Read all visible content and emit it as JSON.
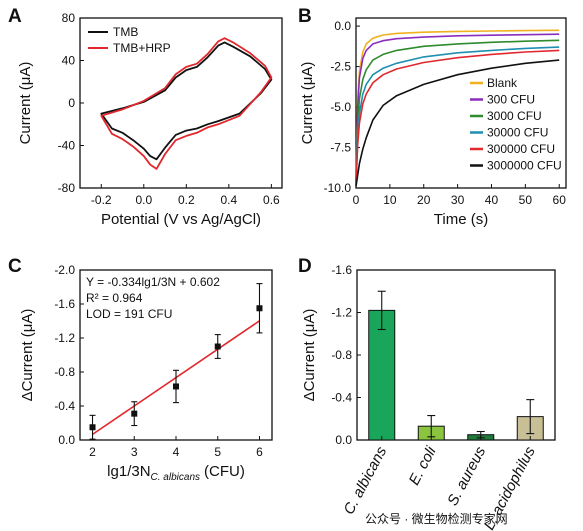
{
  "watermark": "公众号 · 微生物检测专家网",
  "chart_data": [
    {
      "panel": "A",
      "type": "line",
      "xlabel": "Potential (V vs Ag/AgCl)",
      "ylabel": "Current (μA)",
      "xlim": [
        -0.3,
        0.65
      ],
      "ylim": [
        -80,
        80
      ],
      "xticks": [
        -0.2,
        0.0,
        0.2,
        0.4,
        0.6
      ],
      "xtick_labels": [
        "-0.2",
        "0.0",
        "0.2",
        "0.4",
        "0.6"
      ],
      "yticks": [
        -80,
        -40,
        0,
        40,
        80
      ],
      "ytick_labels": [
        "-80",
        "-40",
        "0",
        "40",
        "80"
      ],
      "legend_position": "top-left",
      "series": [
        {
          "name": "TMB",
          "color": "#111111",
          "x": [
            -0.2,
            -0.1,
            0.0,
            0.1,
            0.15,
            0.2,
            0.25,
            0.3,
            0.35,
            0.38,
            0.42,
            0.5,
            0.57,
            0.6,
            0.55,
            0.45,
            0.35,
            0.3,
            0.25,
            0.2,
            0.15,
            0.1,
            0.06,
            0.03,
            0.0,
            -0.05,
            -0.1,
            -0.15,
            -0.2
          ],
          "y": [
            -10,
            -5,
            1,
            12,
            24,
            31,
            34,
            43,
            54,
            57,
            53,
            44,
            32,
            22,
            9,
            -10,
            -17,
            -20,
            -24,
            -26,
            -30,
            -42,
            -53,
            -50,
            -43,
            -35,
            -28,
            -24,
            -10
          ]
        },
        {
          "name": "TMB+HRP",
          "color": "#e0282e",
          "x": [
            -0.2,
            -0.1,
            0.0,
            0.1,
            0.15,
            0.2,
            0.25,
            0.3,
            0.35,
            0.38,
            0.42,
            0.5,
            0.57,
            0.6,
            0.55,
            0.45,
            0.35,
            0.3,
            0.25,
            0.2,
            0.15,
            0.1,
            0.06,
            0.03,
            0.0,
            -0.05,
            -0.1,
            -0.15,
            -0.2
          ],
          "y": [
            -12,
            -6,
            2,
            14,
            27,
            34,
            37,
            46,
            58,
            61,
            57,
            47,
            35,
            24,
            10,
            -12,
            -20,
            -23,
            -28,
            -31,
            -35,
            -48,
            -62,
            -58,
            -50,
            -41,
            -34,
            -29,
            -12
          ]
        }
      ]
    },
    {
      "panel": "B",
      "type": "line",
      "xlabel": "Time (s)",
      "ylabel": "Current (μA)",
      "xlim": [
        0,
        62
      ],
      "ylim": [
        -10,
        0.5
      ],
      "xticks": [
        0,
        10,
        20,
        30,
        40,
        50,
        60
      ],
      "xtick_labels": [
        "0",
        "10",
        "20",
        "30",
        "40",
        "50",
        "60"
      ],
      "yticks": [
        -10,
        -7.5,
        -5,
        -2.5,
        0
      ],
      "ytick_labels": [
        "-10.0",
        "-7.5",
        "-5.0",
        "-2.5",
        "0.0"
      ],
      "legend_position": "bottom-right",
      "series": [
        {
          "name": "Blank",
          "color": "#f0b020",
          "x": [
            0,
            0.5,
            1,
            2,
            3,
            5,
            8,
            12,
            20,
            30,
            40,
            50,
            60
          ],
          "y": [
            -9.6,
            -4.5,
            -2.8,
            -1.6,
            -1.1,
            -0.75,
            -0.55,
            -0.45,
            -0.38,
            -0.33,
            -0.3,
            -0.28,
            -0.26
          ]
        },
        {
          "name": "300 CFU",
          "color": "#8a2dbe",
          "x": [
            0,
            0.5,
            1,
            2,
            3,
            5,
            8,
            12,
            20,
            30,
            40,
            50,
            60
          ],
          "y": [
            -9.6,
            -5.0,
            -3.2,
            -2.0,
            -1.5,
            -1.1,
            -0.9,
            -0.78,
            -0.68,
            -0.6,
            -0.56,
            -0.53,
            -0.5
          ]
        },
        {
          "name": "3000 CFU",
          "color": "#2e8b2e",
          "x": [
            0,
            0.5,
            1,
            2,
            3,
            5,
            8,
            12,
            20,
            30,
            40,
            50,
            60
          ],
          "y": [
            -9.7,
            -6.0,
            -4.5,
            -3.3,
            -2.7,
            -2.1,
            -1.75,
            -1.5,
            -1.25,
            -1.1,
            -1.0,
            -0.93,
            -0.88
          ]
        },
        {
          "name": "30000 CFU",
          "color": "#1f8fb0",
          "x": [
            0,
            0.5,
            1,
            2,
            3,
            5,
            8,
            12,
            20,
            30,
            40,
            50,
            60
          ],
          "y": [
            -9.7,
            -6.8,
            -5.4,
            -4.2,
            -3.6,
            -3.0,
            -2.6,
            -2.3,
            -1.9,
            -1.65,
            -1.5,
            -1.38,
            -1.3
          ]
        },
        {
          "name": "300000 CFU",
          "color": "#e0282e",
          "x": [
            0,
            0.5,
            1,
            2,
            3,
            5,
            8,
            12,
            20,
            30,
            40,
            50,
            60
          ],
          "y": [
            -9.8,
            -7.3,
            -6.0,
            -4.8,
            -4.2,
            -3.5,
            -3.0,
            -2.65,
            -2.25,
            -1.95,
            -1.75,
            -1.6,
            -1.5
          ]
        },
        {
          "name": "3000000 CFU",
          "color": "#111111",
          "x": [
            0,
            0.5,
            1,
            2,
            3,
            5,
            8,
            12,
            20,
            30,
            40,
            50,
            60
          ],
          "y": [
            -9.9,
            -9.2,
            -8.5,
            -7.6,
            -6.9,
            -5.8,
            -4.9,
            -4.3,
            -3.6,
            -3.0,
            -2.6,
            -2.3,
            -2.1
          ]
        }
      ]
    },
    {
      "panel": "C",
      "type": "scatter",
      "xlabel": "lg1/3N",
      "xlabel_subscript": "C. albicans",
      "xlabel_unit": "(CFU)",
      "ylabel": "ΔCurrent (μA)",
      "xlim": [
        1.7,
        6.3
      ],
      "ylim": [
        0,
        -2.0
      ],
      "xticks": [
        2,
        3,
        4,
        5,
        6
      ],
      "xtick_labels": [
        "2",
        "3",
        "4",
        "5",
        "6"
      ],
      "yticks": [
        0,
        -0.4,
        -0.8,
        -1.2,
        -1.6,
        -2.0
      ],
      "ytick_labels": [
        "0.0",
        "-0.4",
        "-0.8",
        "-1.2",
        "-1.6",
        "-2.0"
      ],
      "annotations": [
        "Y = -0.334lg1/3N + 0.602",
        "R² = 0.964",
        "LOD = 191 CFU"
      ],
      "fit_line": {
        "color": "#e0282e",
        "x": [
          2,
          6
        ],
        "y": [
          -0.066,
          -1.402
        ]
      },
      "points": {
        "x": [
          2,
          3,
          4,
          5,
          6
        ],
        "y": [
          -0.15,
          -0.31,
          -0.63,
          -1.1,
          -1.55
        ],
        "error": [
          0.14,
          0.14,
          0.19,
          0.14,
          0.29
        ]
      }
    },
    {
      "panel": "D",
      "type": "bar",
      "ylabel": "ΔCurrent (μA)",
      "ylim": [
        0,
        -1.6
      ],
      "yticks": [
        0,
        -0.4,
        -0.8,
        -1.2,
        -1.6
      ],
      "ytick_labels": [
        "0.0",
        "-0.4",
        "-0.8",
        "-1.2",
        "-1.6"
      ],
      "categories": [
        "C. albicans",
        "E. coli",
        "S. aureus",
        "L. acidophilus"
      ],
      "values": [
        -1.22,
        -0.13,
        -0.05,
        -0.22
      ],
      "errors": [
        0.18,
        0.1,
        0.03,
        0.16
      ],
      "colors": [
        "#1aa65a",
        "#8bc53f",
        "#1f7a3c",
        "#c9bf96"
      ]
    }
  ]
}
